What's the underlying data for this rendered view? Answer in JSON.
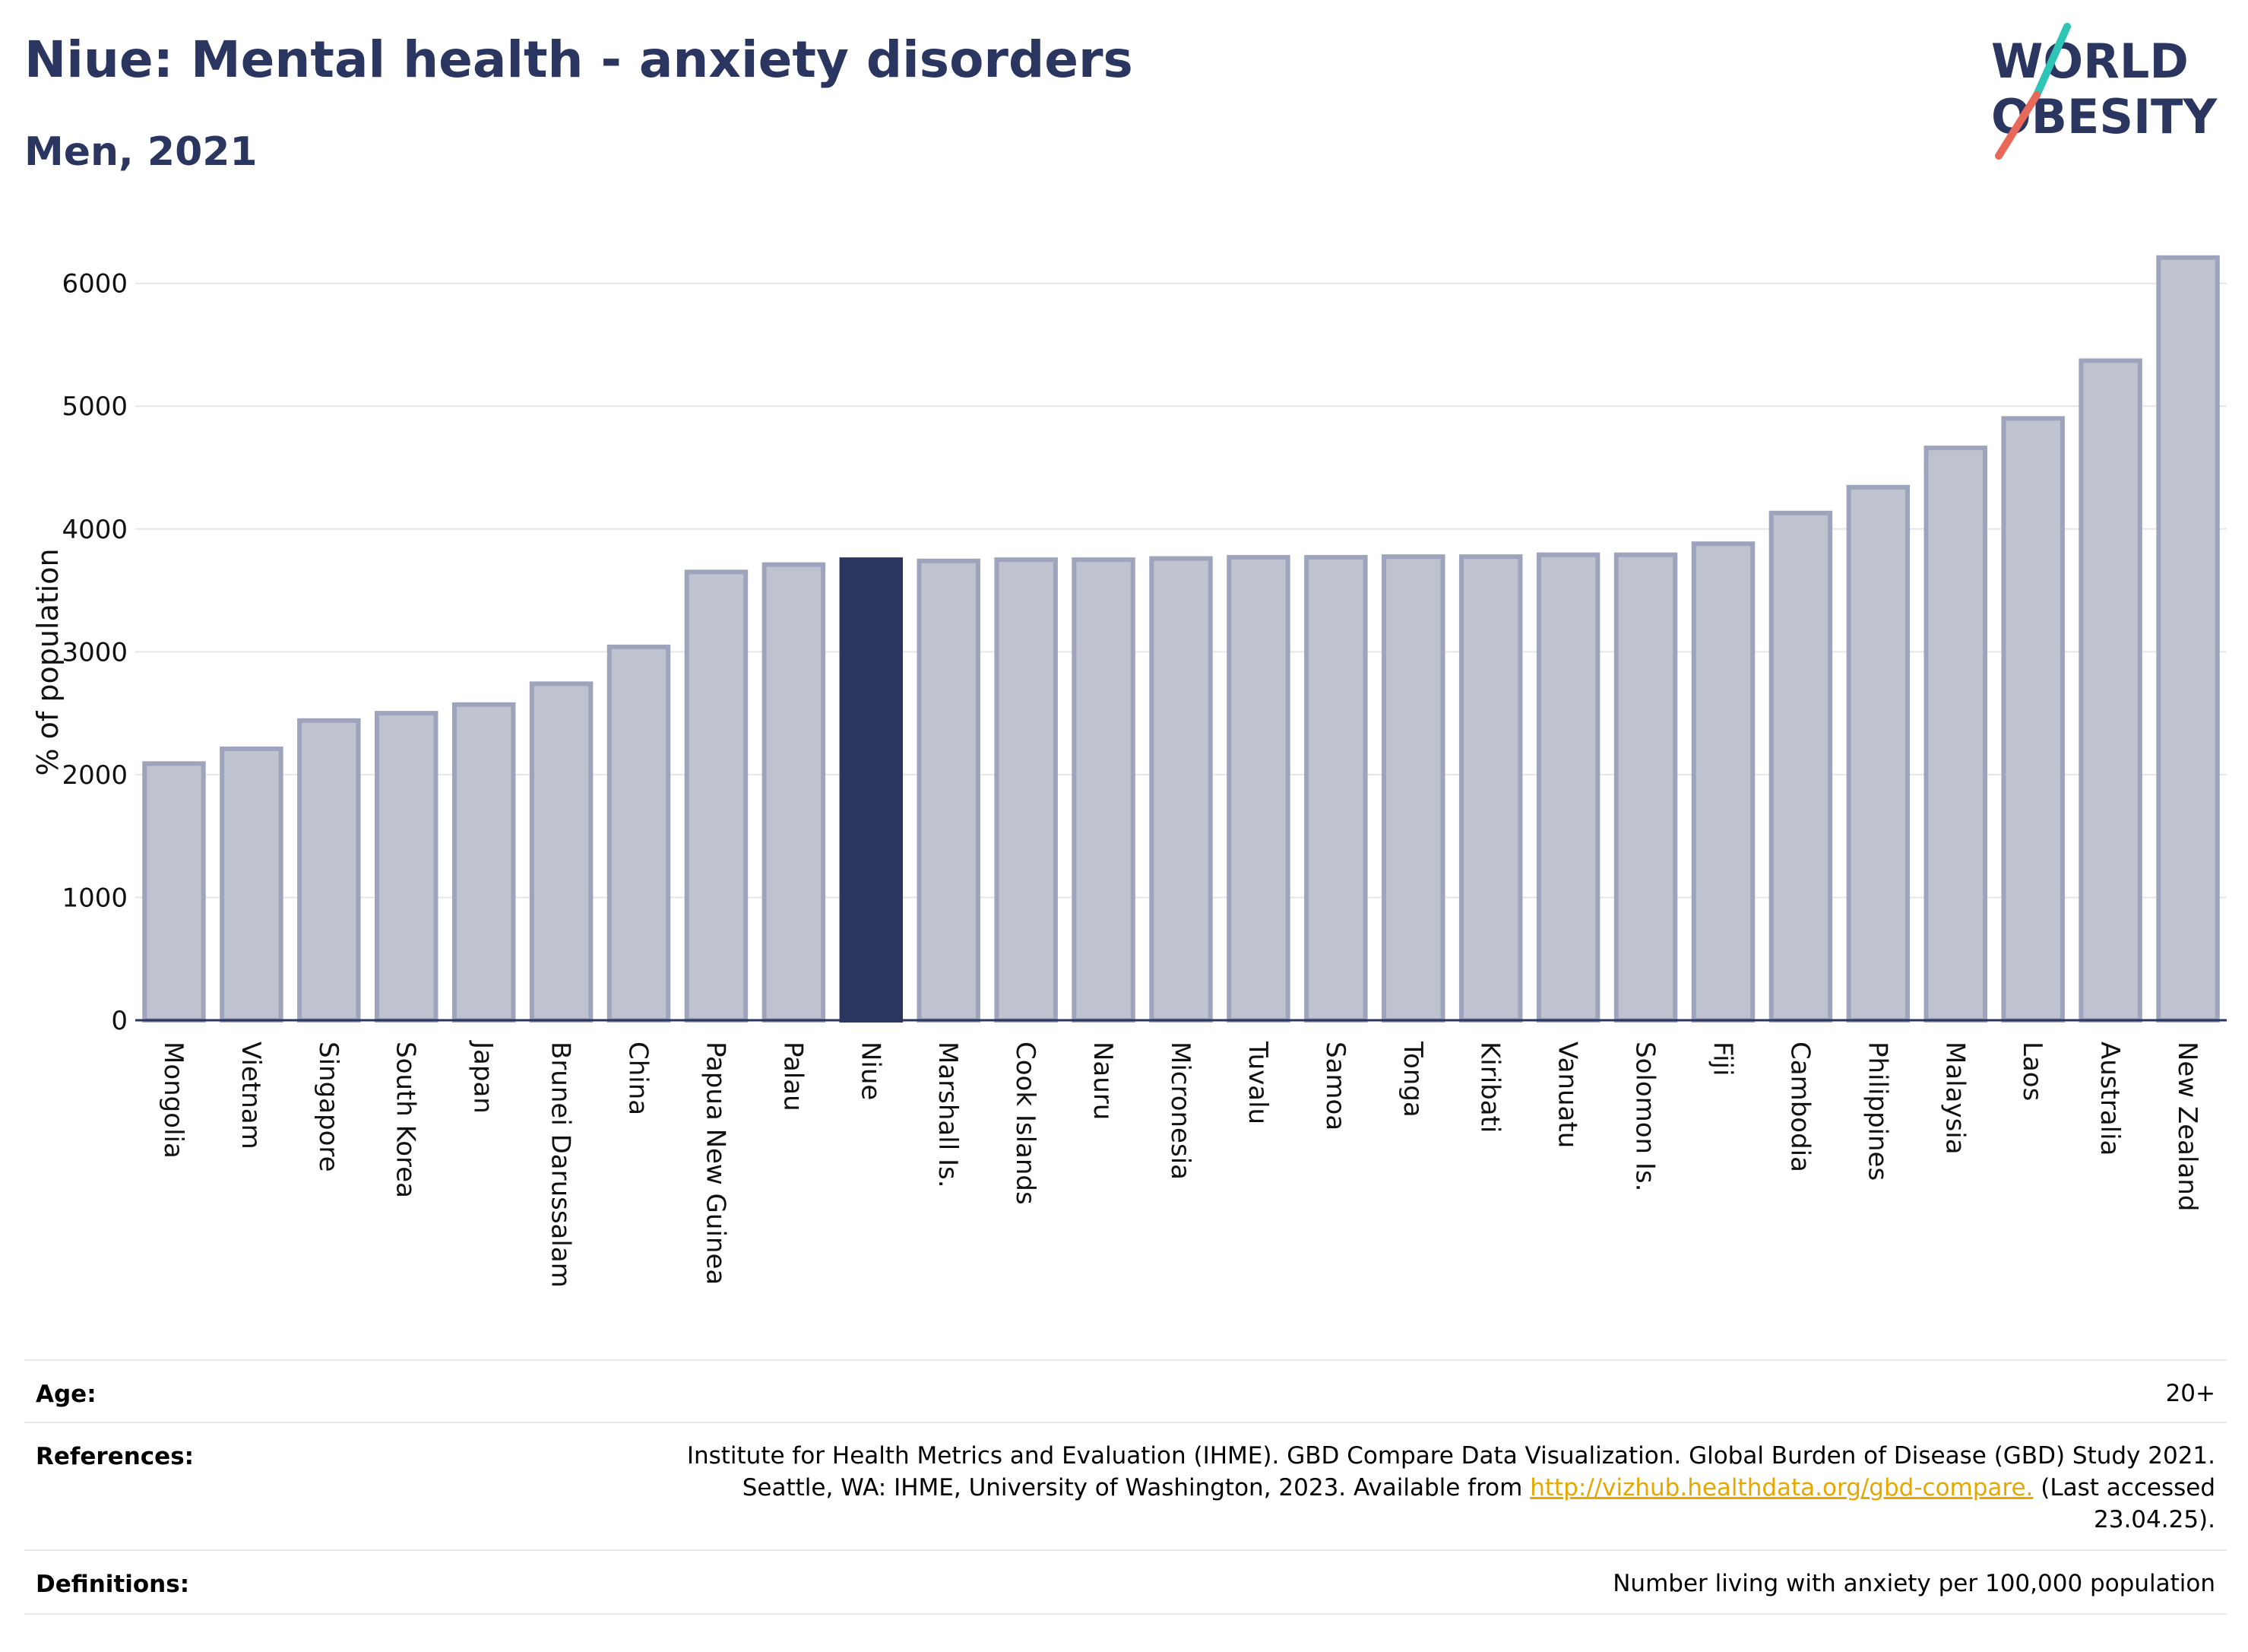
{
  "header": {
    "title": "Niue: Mental health - anxiety disorders",
    "subtitle": "Men, 2021"
  },
  "logo": {
    "line1": "WORLD",
    "line2": "OBESITY",
    "text_color": "#2a3560",
    "slash_colors": [
      "#2ec4b6",
      "#e8685a"
    ]
  },
  "chart_data": {
    "type": "bar",
    "ylabel": "% of population",
    "ylim": [
      0,
      6450
    ],
    "yticks": [
      0,
      1000,
      2000,
      3000,
      4000,
      5000,
      6000
    ],
    "grid": true,
    "highlight": "Niue",
    "colors": {
      "bar": "#bfc3d0",
      "bar_border": "#9ea4bb",
      "highlight": "#2a3560"
    },
    "categories": [
      "Mongolia",
      "Vietnam",
      "Singapore",
      "South Korea",
      "Japan",
      "Brunei Darussalam",
      "China",
      "Papua New Guinea",
      "Palau",
      "Niue",
      "Marshall Is.",
      "Cook Islands",
      "Nauru",
      "Micronesia",
      "Tuvalu",
      "Samoa",
      "Tonga",
      "Kiribati",
      "Vanuatu",
      "Solomon Is.",
      "Fiji",
      "Cambodia",
      "Philippines",
      "Malaysia",
      "Laos",
      "Australia",
      "New Zealand"
    ],
    "values": [
      2090,
      2210,
      2440,
      2500,
      2570,
      2740,
      3040,
      3650,
      3710,
      3750,
      3740,
      3750,
      3750,
      3760,
      3770,
      3770,
      3775,
      3775,
      3790,
      3790,
      3880,
      4130,
      4340,
      4660,
      4900,
      5370,
      6210
    ]
  },
  "info": {
    "age_label": "Age:",
    "age_value": "20+",
    "references_label": "References:",
    "references_line1": "Institute for Health Metrics and Evaluation (IHME). GBD Compare Data Visualization. Global Burden of Disease (GBD) Study 2021.",
    "references_line2_pre": "Seattle, WA: IHME, University of Washington, 2023. Available from ",
    "references_link": "http://vizhub.healthdata.org/gbd-compare.",
    "references_line2_post": " (Last accessed",
    "references_line3": "23.04.25).",
    "definitions_label": "Definitions:",
    "definitions_value": "Number living with anxiety per 100,000 population"
  }
}
